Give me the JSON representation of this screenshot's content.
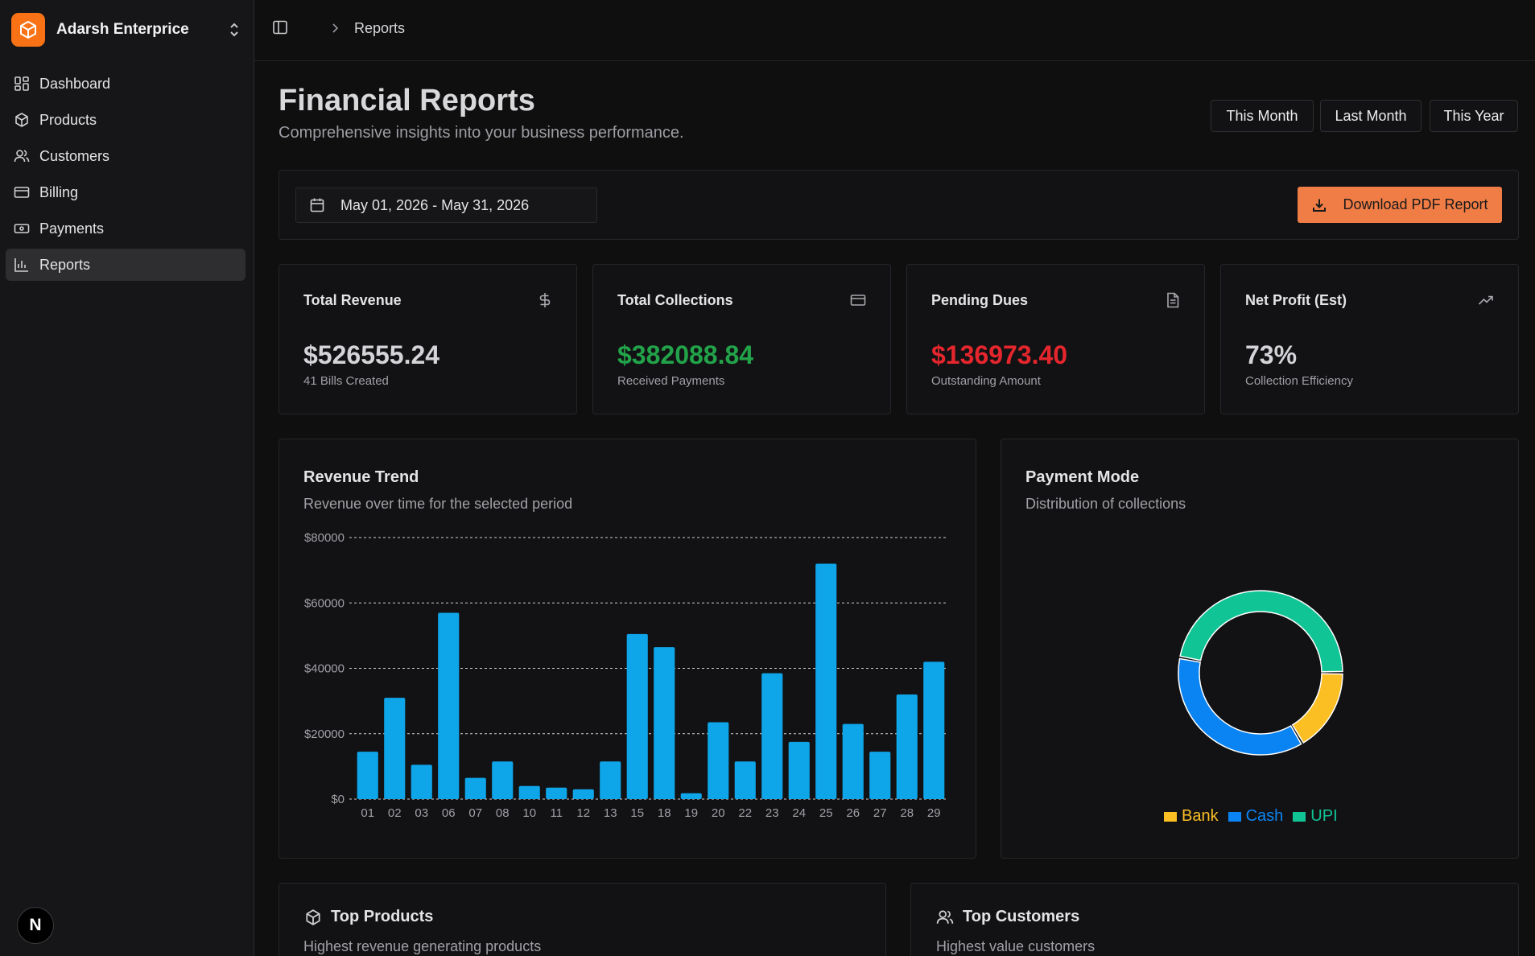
{
  "sidebar": {
    "brand_name": "Adarsh Enterprice",
    "items": [
      {
        "label": "Dashboard",
        "icon": "dashboard-icon"
      },
      {
        "label": "Products",
        "icon": "package-icon"
      },
      {
        "label": "Customers",
        "icon": "users-icon"
      },
      {
        "label": "Billing",
        "icon": "card-icon"
      },
      {
        "label": "Payments",
        "icon": "banknote-icon"
      },
      {
        "label": "Reports",
        "icon": "bar-chart-icon",
        "active": true
      }
    ],
    "badge": "N"
  },
  "header": {
    "breadcrumb": "Reports"
  },
  "page": {
    "title": "Financial Reports",
    "subtitle": "Comprehensive insights into your business performance.",
    "ranges": [
      "This Month",
      "Last Month",
      "This Year"
    ],
    "date_range": "May 01, 2026 - May 31, 2026",
    "download_label": "Download PDF Report"
  },
  "stats": [
    {
      "title": "Total Revenue",
      "value": "$526555.24",
      "sub": "41 Bills Created",
      "icon": "dollar-icon",
      "color": "#d4d4d8"
    },
    {
      "title": "Total Collections",
      "value": "$382088.84",
      "sub": "Received Payments",
      "icon": "card-icon",
      "color": "#22a34a"
    },
    {
      "title": "Pending Dues",
      "value": "$136973.40",
      "sub": "Outstanding Amount",
      "icon": "file-icon",
      "color": "#e5262d"
    },
    {
      "title": "Net Profit (Est)",
      "value": "73%",
      "sub": "Collection Efficiency",
      "icon": "trending-up-icon",
      "color": "#d4d4d8"
    }
  ],
  "revenue_card": {
    "title": "Revenue Trend",
    "subtitle": "Revenue over time for the selected period"
  },
  "payment_card": {
    "title": "Payment Mode",
    "subtitle": "Distribution of collections"
  },
  "top_products": {
    "title": "Top Products",
    "subtitle": "Highest revenue generating products"
  },
  "top_customers": {
    "title": "Top Customers",
    "subtitle": "Highest value customers"
  },
  "colors": {
    "accent": "#f07d45",
    "bar": "#0ea5e9",
    "bank": "#fbbf24",
    "cash": "#0b84f3",
    "upi": "#10c495"
  },
  "chart_data": [
    {
      "type": "bar",
      "categories": [
        "01",
        "02",
        "03",
        "06",
        "07",
        "08",
        "10",
        "11",
        "12",
        "13",
        "15",
        "18",
        "19",
        "20",
        "22",
        "23",
        "24",
        "25",
        "26",
        "27",
        "28",
        "29"
      ],
      "values": [
        14500,
        31000,
        10500,
        57000,
        6500,
        11500,
        4000,
        3500,
        3000,
        11500,
        50500,
        46500,
        1800,
        23500,
        11500,
        38500,
        17500,
        72000,
        23000,
        14500,
        32000,
        42000
      ],
      "ylim": [
        0,
        80000
      ],
      "yticks": [
        "$0",
        "$20000",
        "$40000",
        "$60000",
        "$80000"
      ],
      "ytick_values": [
        0,
        20000,
        40000,
        60000,
        80000
      ],
      "grid": true
    },
    {
      "type": "pie",
      "labels": [
        "Bank",
        "Cash",
        "UPI"
      ],
      "values": [
        16.5,
        36.5,
        47
      ],
      "donut": true,
      "legend": "bottom"
    }
  ]
}
